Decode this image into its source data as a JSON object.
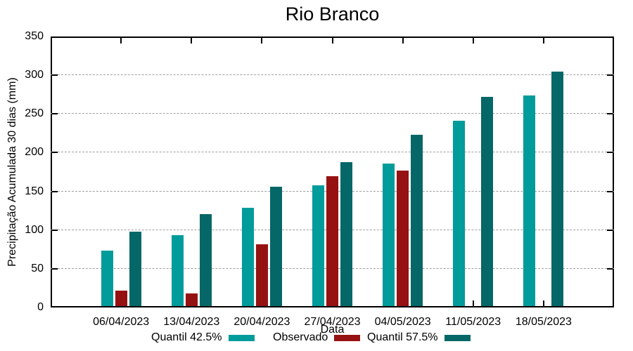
{
  "title": "Rio Branco",
  "colors": {
    "quantil_low": "#009b9b",
    "observado": "#961212",
    "quantil_high": "#056767",
    "grid": "#9e9e9e",
    "axis": "#000000",
    "background": "#ffffff"
  },
  "chart_data": {
    "type": "bar",
    "title": "Rio Branco",
    "xlabel": "Data",
    "ylabel": "Precipitação Acumulada 30 dias (mm)",
    "ylim": [
      0,
      350
    ],
    "y_tick_step": 50,
    "grid": true,
    "legend_position": "bottom",
    "categories": [
      "06/04/2023",
      "13/04/2023",
      "20/04/2023",
      "27/04/2023",
      "04/05/2023",
      "11/05/2023",
      "18/05/2023"
    ],
    "series": [
      {
        "id": "quantil-42-5",
        "name": "Quantil 42.5%",
        "color": "#009b9b",
        "values": [
          72,
          92,
          127,
          156,
          184,
          239,
          272
        ]
      },
      {
        "id": "observado",
        "name": "Observado",
        "color": "#961212",
        "values": [
          20,
          16,
          80,
          168,
          175,
          null,
          null
        ]
      },
      {
        "id": "quantil-57-5",
        "name": "Quantil 57.5%",
        "color": "#056767",
        "values": [
          96,
          119,
          154,
          186,
          221,
          270,
          303
        ]
      }
    ]
  }
}
